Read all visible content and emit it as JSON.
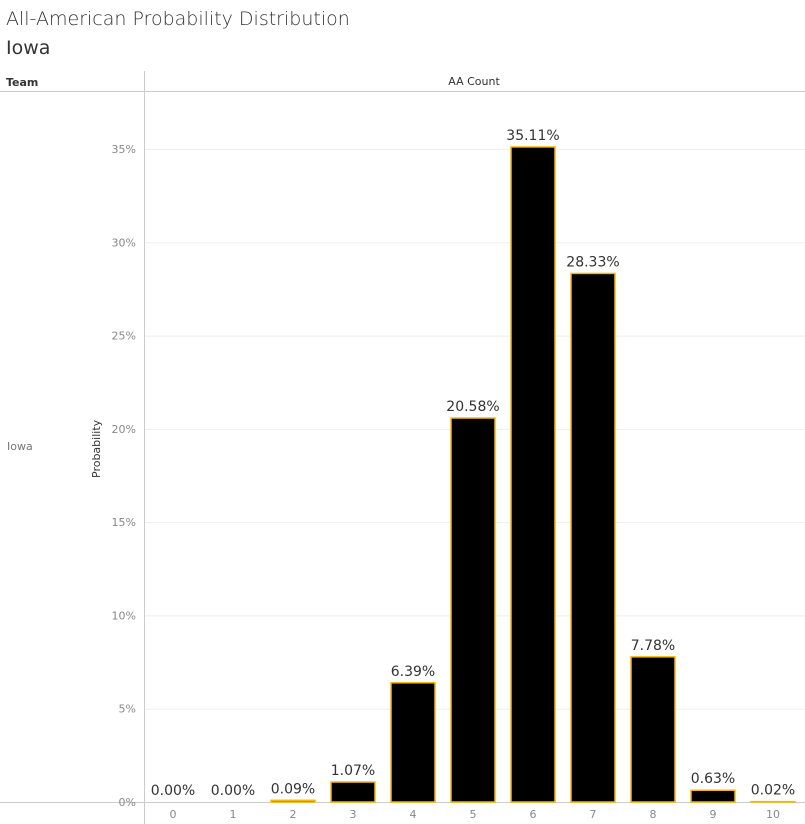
{
  "title": "All-American Probability Distribution",
  "subtitle": "Iowa",
  "header": {
    "row_dimension": "Team",
    "column_header": "AA Count"
  },
  "row_label": "Iowa",
  "colors": {
    "bar_fill": "#000000",
    "bar_border": "#F5B800",
    "grid": "#eeeeee"
  },
  "chart_data": {
    "type": "bar",
    "xlabel": "AA Count",
    "ylabel": "Probability",
    "categories": [
      "0",
      "1",
      "2",
      "3",
      "4",
      "5",
      "6",
      "7",
      "8",
      "9",
      "10"
    ],
    "values": [
      0.0,
      0.0,
      0.09,
      1.07,
      6.39,
      20.58,
      35.11,
      28.33,
      7.78,
      0.63,
      0.02
    ],
    "data_labels": [
      "0.00%",
      "0.00%",
      "0.09%",
      "1.07%",
      "6.39%",
      "20.58%",
      "35.11%",
      "28.33%",
      "7.78%",
      "0.63%",
      "0.02%"
    ],
    "yticks": [
      "0%",
      "5%",
      "10%",
      "15%",
      "20%",
      "25%",
      "30%",
      "35%"
    ],
    "ylim": [
      0,
      37.5
    ],
    "grid": true
  }
}
